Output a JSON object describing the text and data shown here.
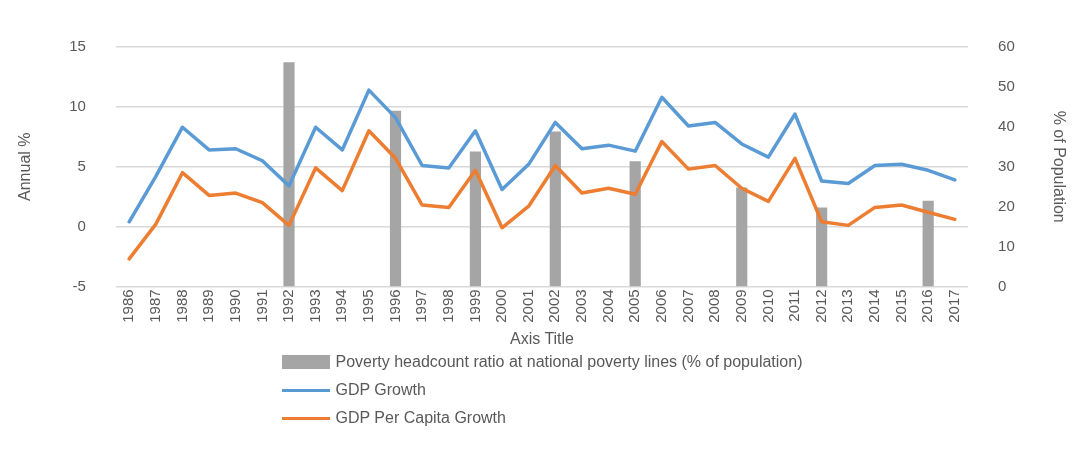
{
  "chart_data": {
    "type": "line",
    "xlabel": "Axis Title",
    "ylabel": "Annual %",
    "y2label": "% of Population",
    "categories": [
      "1986",
      "1987",
      "1988",
      "1989",
      "1990",
      "1991",
      "1992",
      "1993",
      "1994",
      "1995",
      "1996",
      "1997",
      "1998",
      "1999",
      "2000",
      "2001",
      "2002",
      "2003",
      "2004",
      "2005",
      "2006",
      "2007",
      "2008",
      "2009",
      "2010",
      "2011",
      "2012",
      "2013",
      "2014",
      "2015",
      "2016",
      "2017"
    ],
    "series": [
      {
        "name": "Poverty headcount ratio at national poverty lines (% of population)",
        "type": "bar",
        "axis": "y2",
        "color": "#a5a5a5",
        "values": [
          null,
          null,
          null,
          null,
          null,
          null,
          56.2,
          null,
          null,
          null,
          44,
          null,
          null,
          33.8,
          null,
          null,
          38.8,
          null,
          null,
          31.4,
          null,
          null,
          null,
          24.8,
          null,
          null,
          19.8,
          null,
          null,
          null,
          21.5,
          null
        ]
      },
      {
        "name": "GDP Growth",
        "color": "#5b9bd5",
        "values": [
          0.4,
          4.2,
          8.3,
          6.4,
          6.5,
          5.5,
          3.4,
          8.3,
          6.4,
          11.4,
          9.1,
          5.1,
          4.9,
          8.0,
          3.1,
          5.2,
          8.7,
          6.5,
          6.8,
          6.3,
          10.8,
          8.4,
          8.7,
          6.9,
          5.8,
          9.4,
          3.8,
          3.6,
          5.1,
          5.2,
          4.7,
          3.9
        ]
      },
      {
        "name": "GDP Per Capita Growth",
        "color": "#ed7d31",
        "values": [
          -2.7,
          0.2,
          4.5,
          2.6,
          2.8,
          2.0,
          0.1,
          4.9,
          3.0,
          8.0,
          5.7,
          1.8,
          1.6,
          4.7,
          -0.1,
          1.7,
          5.1,
          2.8,
          3.2,
          2.7,
          7.1,
          4.8,
          5.1,
          3.2,
          2.1,
          5.7,
          0.4,
          0.1,
          1.6,
          1.8,
          1.2,
          0.6
        ]
      }
    ],
    "ylim": [
      -5,
      15
    ],
    "yticks": [
      -5,
      0,
      5,
      10,
      15
    ],
    "y2lim": [
      0,
      60
    ],
    "y2ticks": [
      0,
      10,
      20,
      30,
      40,
      50,
      60
    ],
    "grid": "y",
    "legend": "bottom",
    "marker": "none",
    "line_style": "solid"
  }
}
